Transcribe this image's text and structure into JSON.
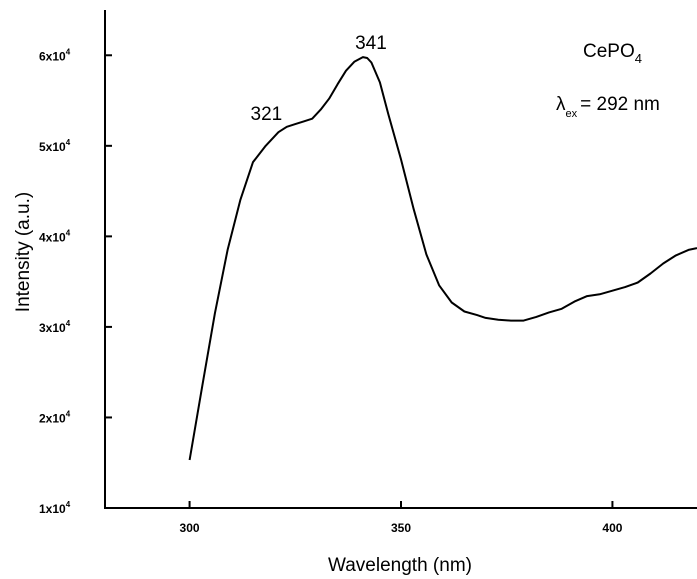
{
  "chart_data": {
    "type": "line",
    "xlabel": "Wavelength (nm)",
    "ylabel": "Intensity (a.u.)",
    "xlim": [
      280,
      420
    ],
    "ylim": [
      10000,
      65000
    ],
    "x_ticks": [
      300,
      350,
      400
    ],
    "y_ticks": [
      {
        "value": 10000,
        "mantissa": "1x10",
        "exp": "4"
      },
      {
        "value": 20000,
        "mantissa": "2x10",
        "exp": "4"
      },
      {
        "value": 30000,
        "mantissa": "3x10",
        "exp": "4"
      },
      {
        "value": 40000,
        "mantissa": "4x10",
        "exp": "4"
      },
      {
        "value": 50000,
        "mantissa": "5x10",
        "exp": "4"
      },
      {
        "value": 60000,
        "mantissa": "6x10",
        "exp": "4"
      }
    ],
    "grid": false,
    "color": "#000000",
    "series": [
      {
        "x": [
          300,
          303,
          306,
          309,
          312,
          315,
          318,
          320,
          321,
          323,
          325,
          327,
          329,
          331,
          333,
          335,
          337,
          339,
          341,
          342,
          343,
          345,
          347,
          350,
          353,
          356,
          359,
          362,
          365,
          368,
          370,
          373,
          376,
          379,
          382,
          385,
          388,
          391,
          394,
          397,
          400,
          403,
          406,
          409,
          412,
          415,
          418,
          420
        ],
        "y": [
          15300,
          23500,
          31500,
          38500,
          44000,
          48200,
          50000,
          51000,
          51500,
          52100,
          52400,
          52700,
          53000,
          54000,
          55200,
          56800,
          58300,
          59300,
          59800,
          59700,
          59200,
          57000,
          53500,
          48500,
          43000,
          38000,
          34600,
          32700,
          31700,
          31300,
          31000,
          30800,
          30700,
          30700,
          31100,
          31600,
          32000,
          32800,
          33400,
          33600,
          34000,
          34400,
          34900,
          35900,
          37000,
          37900,
          38500,
          38700
        ]
      }
    ],
    "annotations": {
      "peak1": {
        "text": "321",
        "x": 321,
        "y": 51500
      },
      "peak2": {
        "text": "341",
        "x": 341,
        "y": 59800
      }
    },
    "legend_text": {
      "compound_main": "CePO",
      "compound_sub": "4",
      "lambda_symbol": "λ",
      "lambda_sub": "ex",
      "lambda_value": "= 292 nm"
    }
  }
}
